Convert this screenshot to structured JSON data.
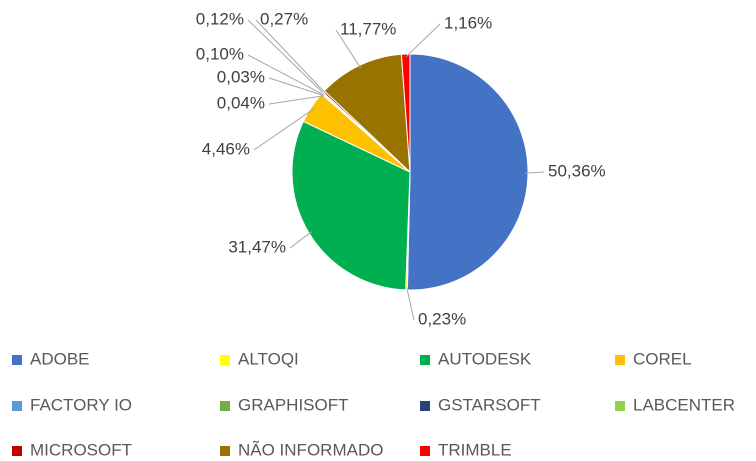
{
  "chart_data": {
    "type": "pie",
    "categories": [
      "ADOBE",
      "ALTOQI",
      "AUTODESK",
      "COREL",
      "FACTORY IO",
      "GRAPHISOFT",
      "GSTARSOFT",
      "LABCENTER",
      "MICROSOFT",
      "NÃO INFORMADO",
      "TRIMBLE"
    ],
    "values": [
      50.36,
      0.23,
      31.47,
      4.46,
      0.04,
      0.03,
      0.1,
      0.12,
      0.27,
      11.77,
      1.16
    ],
    "value_labels": [
      "50,36%",
      "0,23%",
      "31,47%",
      "4,46%",
      "0,04%",
      "0,03%",
      "0,10%",
      "0,12%",
      "0,27%",
      "11,77%",
      "1,16%"
    ],
    "colors": [
      "#4472c4",
      "#ffff00",
      "#00b050",
      "#ffc000",
      "#5b9bd5",
      "#70ad47",
      "#264478",
      "#92d050",
      "#c00000",
      "#997300",
      "#ff0000"
    ],
    "legend": "bottom"
  }
}
